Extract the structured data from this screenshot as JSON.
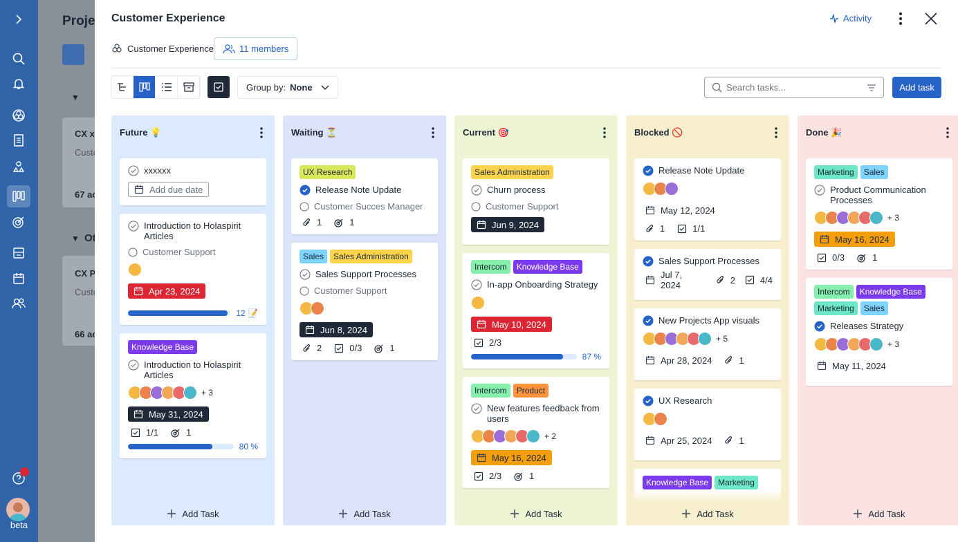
{
  "sidebar": {
    "beta_label": "beta"
  },
  "background": {
    "title": "Proje",
    "cards": [
      {
        "title": "CX x",
        "sub": "Custo",
        "count": "67 ac"
      },
      {
        "title": "CX Pr",
        "sub": "Custo",
        "count": "66 ac"
      }
    ],
    "group_label": "Ot"
  },
  "panel": {
    "title": "Customer Experience",
    "activity_label": "Activity",
    "circle_name": "Customer Experience",
    "members_label": "11 members"
  },
  "toolbar": {
    "groupby_label": "Group by:",
    "groupby_value": "None",
    "search_placeholder": "Search tasks...",
    "add_task_label": "Add Task",
    "add_task_btn": "Add task"
  },
  "columns": [
    {
      "title": "Future 💡",
      "bg": "#dbeafe",
      "footer": "Add Task",
      "cards": [
        {
          "tags": [],
          "title": "xxxxxx",
          "done": false,
          "add_due": "Add due date"
        },
        {
          "tags": [],
          "title": "Introduction to Holaspirit Articles",
          "role": "Customer Support",
          "avatars": 1,
          "date": "Apr 23, 2024",
          "date_style": "red",
          "progress": 0.97,
          "progress_label": "12 📝"
        },
        {
          "tags": [
            {
              "label": "Knowledge Base",
              "bg": "#7c3aed",
              "fg": "#ffffff"
            }
          ],
          "title": "Introduction to Holaspirit Articles",
          "avatars": 6,
          "more": "+ 3",
          "date": "May 31, 2024",
          "date_style": "dark",
          "meta": [
            {
              "icon": "checklist",
              "v": "1/1"
            },
            {
              "icon": "target",
              "v": "1"
            }
          ],
          "progress": 0.8,
          "progress_label": "80 %"
        }
      ]
    },
    {
      "title": "Waiting ⏳",
      "bg": "#dbe4fb",
      "footer": "Add Task",
      "cards": [
        {
          "tags": [
            {
              "label": "UX Research",
              "bg": "#d9e75a",
              "fg": "#1f2937"
            }
          ],
          "title": "Release Note Update",
          "done": true,
          "role": "Customer Succes Manager",
          "meta": [
            {
              "icon": "attach",
              "v": "1"
            },
            {
              "icon": "target",
              "v": "1"
            }
          ]
        },
        {
          "tags": [
            {
              "label": "Sales",
              "bg": "#7dd3fc",
              "fg": "#1f2937"
            },
            {
              "label": "Sales Administration",
              "bg": "#fcd34d",
              "fg": "#1f2937"
            }
          ],
          "title": "Sales Support Processes",
          "role": "Customer Support",
          "avatars": 2,
          "date": "Jun 8, 2024",
          "date_style": "dark",
          "meta": [
            {
              "icon": "attach",
              "v": "2"
            },
            {
              "icon": "checklist",
              "v": "0/3"
            },
            {
              "icon": "target",
              "v": "1"
            }
          ]
        }
      ]
    },
    {
      "title": "Current 🎯",
      "bg": "#eef5d4",
      "footer": "Add Task",
      "cards": [
        {
          "tags": [
            {
              "label": "Sales Administration",
              "bg": "#fcd34d",
              "fg": "#1f2937"
            }
          ],
          "title": "Churn process",
          "role": "Customer Support",
          "date": "Jun 9, 2024",
          "date_style": "dark"
        },
        {
          "tags": [
            {
              "label": "Intercom",
              "bg": "#86efac",
              "fg": "#1f2937"
            },
            {
              "label": "Knowledge Base",
              "bg": "#7c3aed",
              "fg": "#ffffff"
            }
          ],
          "title": "In-app Onboarding Strategy",
          "avatars": 1,
          "date": "May 10, 2024",
          "date_style": "red",
          "meta": [
            {
              "icon": "checklist",
              "v": "2/3"
            }
          ],
          "progress": 0.87,
          "progress_label": "87 %"
        },
        {
          "tags": [
            {
              "label": "Intercom",
              "bg": "#86efac",
              "fg": "#1f2937"
            },
            {
              "label": "Product",
              "bg": "#fb923c",
              "fg": "#1f2937"
            }
          ],
          "title": "New features feedback from users",
          "avatars": 6,
          "more": "+ 2",
          "date": "May 16, 2024",
          "date_style": "orange",
          "meta": [
            {
              "icon": "checklist",
              "v": "2/3"
            },
            {
              "icon": "target",
              "v": "1"
            }
          ]
        }
      ]
    },
    {
      "title": "Blocked 🚫",
      "bg": "#f8efcf",
      "footer": "Add Task",
      "cards": [
        {
          "tags": [],
          "title": "Release Note Update",
          "done": true,
          "avatars": 3,
          "date": "May 12, 2024",
          "date_style": "plain",
          "meta": [
            {
              "icon": "attach",
              "v": "1"
            },
            {
              "icon": "checklist",
              "v": "1/1"
            }
          ]
        },
        {
          "tags": [],
          "title": "Sales Support Processes",
          "done": true,
          "date": "Jul 7, 2024",
          "date_style": "plain",
          "inline_meta": [
            {
              "icon": "attach",
              "v": "2"
            },
            {
              "icon": "checklist",
              "v": "4/4"
            }
          ]
        },
        {
          "tags": [],
          "title": "New Projects App visuals",
          "done": true,
          "avatars": 6,
          "more": "+ 5",
          "date": "Apr 28, 2024",
          "date_style": "plain",
          "inline_meta": [
            {
              "icon": "attach",
              "v": "1"
            }
          ]
        },
        {
          "tags": [],
          "title": "UX Research",
          "done": true,
          "avatars": 2,
          "date": "Apr 25, 2024",
          "date_style": "plain",
          "inline_meta": [
            {
              "icon": "attach",
              "v": "1"
            }
          ]
        },
        {
          "tags": [
            {
              "label": "Knowledge Base",
              "bg": "#7c3aed",
              "fg": "#ffffff"
            },
            {
              "label": "Marketing",
              "bg": "#6ee7c8",
              "fg": "#1f2937"
            }
          ],
          "title": "",
          "done": false
        }
      ]
    },
    {
      "title": "Done 🎉",
      "bg": "#fbe3e1",
      "footer": "Add Task",
      "cards": [
        {
          "tags": [
            {
              "label": "Marketing",
              "bg": "#6ee7c8",
              "fg": "#1f2937"
            },
            {
              "label": "Sales",
              "bg": "#7dd3fc",
              "fg": "#1f2937"
            }
          ],
          "title": "Product Communication Processes",
          "avatars": 6,
          "more": "+ 3",
          "date": "May 16, 2024",
          "date_style": "orange",
          "meta": [
            {
              "icon": "checklist",
              "v": "0/3"
            },
            {
              "icon": "target",
              "v": "1"
            }
          ]
        },
        {
          "tags": [
            {
              "label": "Intercom",
              "bg": "#86efac",
              "fg": "#1f2937"
            },
            {
              "label": "Knowledge Base",
              "bg": "#7c3aed",
              "fg": "#ffffff"
            },
            {
              "label": "Marketing",
              "bg": "#6ee7c8",
              "fg": "#1f2937"
            },
            {
              "label": "Sales",
              "bg": "#7dd3fc",
              "fg": "#1f2937"
            }
          ],
          "title": "Releases Strategy",
          "done": true,
          "avatars": 6,
          "more": "+ 3",
          "date": "May 11, 2024",
          "date_style": "plain"
        }
      ]
    }
  ],
  "avatar_colors": [
    "#f4b942",
    "#e9844a",
    "#9b6dd6",
    "#f2a65a",
    "#e86a6a",
    "#4bb8c9"
  ]
}
